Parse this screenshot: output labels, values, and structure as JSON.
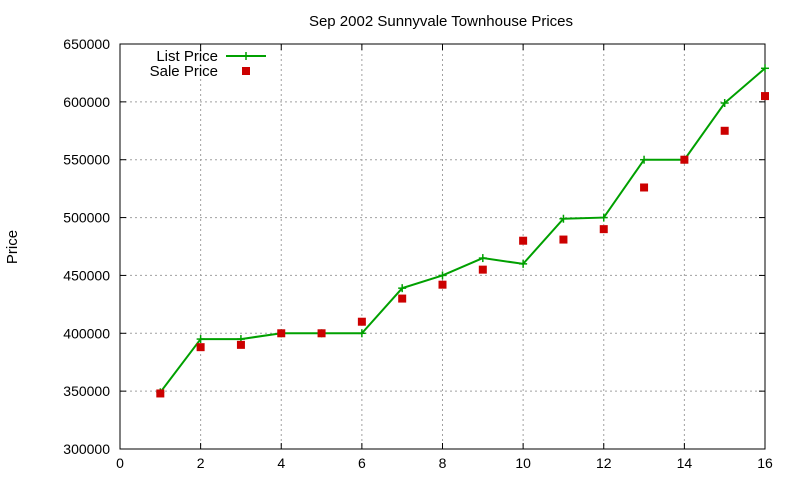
{
  "chart_data": {
    "type": "line",
    "title": "Sep 2002 Sunnyvale Townhouse Prices",
    "xlabel": "",
    "ylabel": "Price",
    "xlim": [
      0,
      16
    ],
    "ylim": [
      300000,
      650000
    ],
    "x_ticks": [
      0,
      2,
      4,
      6,
      8,
      10,
      12,
      14,
      16
    ],
    "y_ticks": [
      300000,
      350000,
      400000,
      450000,
      500000,
      550000,
      600000,
      650000
    ],
    "grid": true,
    "legend_position": "top-left",
    "series": [
      {
        "name": "List Price",
        "style": "line-with-plus-markers",
        "color": "#00a000",
        "x": [
          1,
          2,
          3,
          4,
          5,
          6,
          7,
          8,
          9,
          10,
          11,
          12,
          13,
          14,
          15,
          16
        ],
        "y": [
          349000,
          395000,
          395000,
          400000,
          400000,
          400000,
          439000,
          450000,
          465000,
          460000,
          499000,
          500000,
          550000,
          550000,
          599000,
          629000
        ]
      },
      {
        "name": "Sale Price",
        "style": "square-markers",
        "color": "#cc0000",
        "x": [
          1,
          2,
          3,
          4,
          5,
          6,
          7,
          8,
          9,
          10,
          11,
          12,
          13,
          14,
          15,
          16
        ],
        "y": [
          348000,
          388000,
          390000,
          400000,
          400000,
          410000,
          430000,
          442000,
          455000,
          480000,
          481000,
          490000,
          526000,
          550000,
          575000,
          605000
        ]
      }
    ]
  }
}
